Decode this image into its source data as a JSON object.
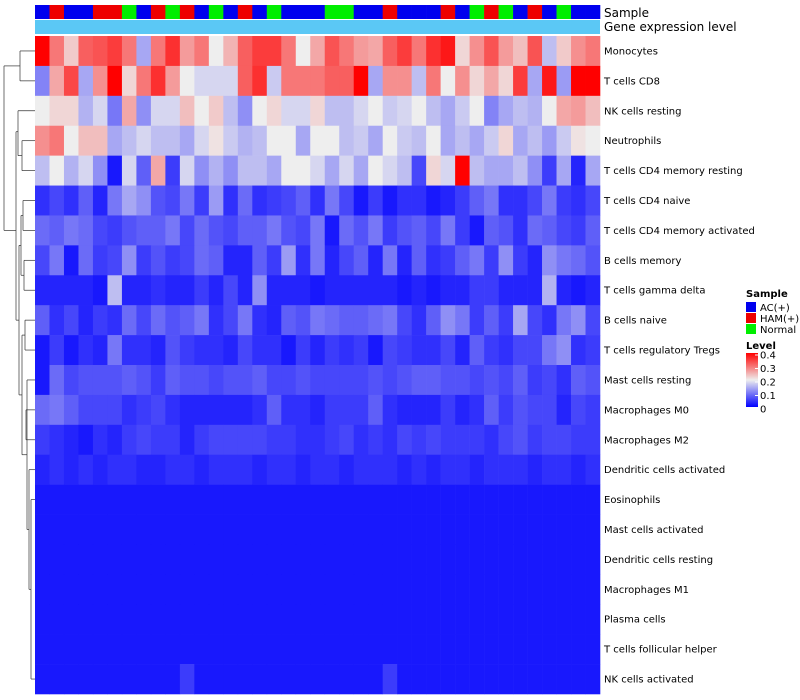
{
  "chart_data": {
    "type": "heatmap",
    "title": "",
    "annotation_rows": [
      "Sample",
      "Gene expression level"
    ],
    "columns": 39,
    "sample_groups": [
      "AC(+)",
      "HAM(+)",
      "AC(+)",
      "AC(+)",
      "HAM(+)",
      "HAM(+)",
      "Normal",
      "AC(+)",
      "HAM(+)",
      "Normal",
      "HAM(+)",
      "AC(+)",
      "Normal",
      "AC(+)",
      "HAM(+)",
      "AC(+)",
      "Normal",
      "AC(+)",
      "AC(+)",
      "AC(+)",
      "Normal",
      "Normal",
      "AC(+)",
      "AC(+)",
      "HAM(+)",
      "AC(+)",
      "AC(+)",
      "AC(+)",
      "HAM(+)",
      "AC(+)",
      "Normal",
      "HAM(+)",
      "Normal",
      "AC(+)",
      "HAM(+)",
      "AC(+)",
      "Normal",
      "AC(+)",
      "AC(+)"
    ],
    "rows": [
      "Monocytes",
      "T cells CD8",
      "NK cells resting",
      "Neutrophils",
      "T cells CD4 memory resting",
      "T cells CD4 naive",
      "T cells CD4 memory activated",
      "B cells memory",
      "T cells gamma delta",
      "B cells naive",
      "T cells regulatory  Tregs",
      "Mast cells resting",
      "Macrophages M0",
      "Macrophages M2",
      "Dendritic cells activated",
      "Eosinophils",
      "Mast cells activated",
      "Dendritic cells resting",
      "Macrophages M1",
      "Plasma cells",
      "T cells follicular helper",
      "NK cells activated"
    ],
    "values": [
      [
        0.4,
        0.3,
        0.23,
        0.32,
        0.33,
        0.35,
        0.3,
        0.14,
        0.3,
        0.36,
        0.27,
        0.3,
        0.2,
        0.25,
        0.32,
        0.35,
        0.35,
        0.3,
        0.2,
        0.26,
        0.33,
        0.3,
        0.27,
        0.26,
        0.32,
        0.35,
        0.3,
        0.36,
        0.38,
        0.22,
        0.28,
        0.33,
        0.27,
        0.24,
        0.33,
        0.16,
        0.23,
        0.28,
        0.3
      ],
      [
        0.11,
        0.26,
        0.34,
        0.14,
        0.28,
        0.4,
        0.22,
        0.3,
        0.36,
        0.27,
        0.2,
        0.18,
        0.18,
        0.18,
        0.32,
        0.36,
        0.17,
        0.3,
        0.3,
        0.3,
        0.32,
        0.32,
        0.4,
        0.14,
        0.28,
        0.28,
        0.16,
        0.3,
        0.2,
        0.28,
        0.22,
        0.26,
        0.22,
        0.35,
        0.14,
        0.38,
        0.13,
        0.4,
        0.4
      ],
      [
        0.2,
        0.22,
        0.22,
        0.15,
        0.18,
        0.1,
        0.26,
        0.12,
        0.18,
        0.18,
        0.24,
        0.2,
        0.23,
        0.16,
        0.12,
        0.2,
        0.22,
        0.18,
        0.18,
        0.22,
        0.16,
        0.16,
        0.18,
        0.2,
        0.17,
        0.18,
        0.2,
        0.16,
        0.14,
        0.17,
        0.2,
        0.11,
        0.14,
        0.16,
        0.15,
        0.2,
        0.26,
        0.27,
        0.24
      ],
      [
        0.28,
        0.3,
        0.2,
        0.24,
        0.24,
        0.14,
        0.16,
        0.18,
        0.16,
        0.16,
        0.14,
        0.18,
        0.21,
        0.17,
        0.15,
        0.16,
        0.2,
        0.2,
        0.14,
        0.2,
        0.2,
        0.16,
        0.17,
        0.14,
        0.2,
        0.17,
        0.16,
        0.2,
        0.14,
        0.16,
        0.14,
        0.17,
        0.22,
        0.14,
        0.16,
        0.13,
        0.17,
        0.21,
        0.2
      ],
      [
        0.16,
        0.2,
        0.15,
        0.18,
        0.12,
        0.02,
        0.18,
        0.08,
        0.26,
        0.05,
        0.18,
        0.12,
        0.15,
        0.12,
        0.16,
        0.16,
        0.14,
        0.2,
        0.2,
        0.18,
        0.14,
        0.18,
        0.14,
        0.2,
        0.18,
        0.16,
        0.06,
        0.22,
        0.18,
        0.4,
        0.16,
        0.14,
        0.14,
        0.16,
        0.12,
        0.05,
        0.14,
        0.03,
        0.14
      ],
      [
        0.04,
        0.06,
        0.04,
        0.08,
        0.03,
        0.1,
        0.14,
        0.12,
        0.07,
        0.06,
        0.1,
        0.05,
        0.13,
        0.04,
        0.09,
        0.04,
        0.05,
        0.06,
        0.08,
        0.04,
        0.1,
        0.06,
        0.02,
        0.05,
        0.02,
        0.04,
        0.04,
        0.02,
        0.03,
        0.05,
        0.08,
        0.1,
        0.04,
        0.04,
        0.06,
        0.1,
        0.05,
        0.04,
        0.06
      ],
      [
        0.09,
        0.08,
        0.1,
        0.09,
        0.06,
        0.05,
        0.07,
        0.08,
        0.08,
        0.1,
        0.06,
        0.09,
        0.07,
        0.06,
        0.08,
        0.08,
        0.1,
        0.07,
        0.06,
        0.1,
        0.02,
        0.09,
        0.07,
        0.1,
        0.05,
        0.07,
        0.08,
        0.06,
        0.1,
        0.05,
        0.02,
        0.08,
        0.07,
        0.04,
        0.09,
        0.08,
        0.06,
        0.05,
        0.08
      ],
      [
        0.06,
        0.1,
        0.02,
        0.09,
        0.05,
        0.06,
        0.12,
        0.05,
        0.07,
        0.05,
        0.06,
        0.09,
        0.08,
        0.03,
        0.03,
        0.08,
        0.05,
        0.13,
        0.04,
        0.1,
        0.03,
        0.06,
        0.08,
        0.03,
        0.1,
        0.03,
        0.08,
        0.04,
        0.05,
        0.08,
        0.1,
        0.05,
        0.12,
        0.05,
        0.03,
        0.12,
        0.1,
        0.09,
        0.07
      ],
      [
        0.03,
        0.03,
        0.03,
        0.03,
        0.02,
        0.16,
        0.03,
        0.03,
        0.04,
        0.03,
        0.03,
        0.05,
        0.03,
        0.06,
        0.03,
        0.12,
        0.03,
        0.03,
        0.03,
        0.02,
        0.03,
        0.03,
        0.03,
        0.03,
        0.03,
        0.02,
        0.03,
        0.02,
        0.03,
        0.03,
        0.05,
        0.05,
        0.03,
        0.03,
        0.03,
        0.15,
        0.03,
        0.02,
        0.03
      ],
      [
        0.08,
        0.04,
        0.06,
        0.03,
        0.05,
        0.04,
        0.09,
        0.06,
        0.09,
        0.07,
        0.08,
        0.1,
        0.04,
        0.06,
        0.1,
        0.04,
        0.03,
        0.08,
        0.07,
        0.1,
        0.09,
        0.08,
        0.08,
        0.09,
        0.1,
        0.06,
        0.04,
        0.08,
        0.12,
        0.1,
        0.05,
        0.08,
        0.05,
        0.14,
        0.06,
        0.04,
        0.1,
        0.12,
        0.06
      ],
      [
        0.02,
        0.05,
        0.02,
        0.04,
        0.03,
        0.1,
        0.04,
        0.04,
        0.03,
        0.07,
        0.05,
        0.04,
        0.04,
        0.03,
        0.06,
        0.04,
        0.04,
        0.02,
        0.05,
        0.03,
        0.05,
        0.04,
        0.05,
        0.02,
        0.06,
        0.05,
        0.04,
        0.04,
        0.06,
        0.03,
        0.08,
        0.05,
        0.04,
        0.06,
        0.06,
        0.1,
        0.12,
        0.04,
        0.05
      ],
      [
        0.02,
        0.09,
        0.06,
        0.07,
        0.07,
        0.07,
        0.08,
        0.07,
        0.05,
        0.08,
        0.07,
        0.07,
        0.06,
        0.07,
        0.07,
        0.08,
        0.06,
        0.06,
        0.07,
        0.06,
        0.06,
        0.06,
        0.06,
        0.07,
        0.06,
        0.07,
        0.08,
        0.08,
        0.07,
        0.07,
        0.06,
        0.07,
        0.06,
        0.08,
        0.05,
        0.06,
        0.04,
        0.08,
        0.07
      ],
      [
        0.09,
        0.1,
        0.08,
        0.06,
        0.06,
        0.06,
        0.04,
        0.05,
        0.06,
        0.04,
        0.03,
        0.03,
        0.03,
        0.03,
        0.03,
        0.04,
        0.08,
        0.04,
        0.04,
        0.03,
        0.05,
        0.05,
        0.05,
        0.08,
        0.04,
        0.03,
        0.03,
        0.03,
        0.05,
        0.03,
        0.04,
        0.08,
        0.05,
        0.07,
        0.06,
        0.06,
        0.03,
        0.06,
        0.05
      ],
      [
        0.05,
        0.04,
        0.03,
        0.02,
        0.04,
        0.03,
        0.05,
        0.06,
        0.05,
        0.05,
        0.03,
        0.05,
        0.06,
        0.06,
        0.06,
        0.06,
        0.05,
        0.05,
        0.04,
        0.04,
        0.05,
        0.06,
        0.04,
        0.05,
        0.04,
        0.06,
        0.05,
        0.06,
        0.05,
        0.05,
        0.05,
        0.04,
        0.06,
        0.07,
        0.05,
        0.06,
        0.06,
        0.05,
        0.05
      ],
      [
        0.03,
        0.04,
        0.03,
        0.04,
        0.03,
        0.04,
        0.04,
        0.03,
        0.03,
        0.04,
        0.04,
        0.03,
        0.04,
        0.04,
        0.04,
        0.03,
        0.04,
        0.04,
        0.03,
        0.04,
        0.04,
        0.03,
        0.04,
        0.04,
        0.04,
        0.03,
        0.04,
        0.03,
        0.04,
        0.04,
        0.03,
        0.04,
        0.04,
        0.04,
        0.03,
        0.04,
        0.04,
        0.03,
        0.04
      ],
      [
        0.02,
        0.02,
        0.02,
        0.02,
        0.02,
        0.02,
        0.02,
        0.02,
        0.02,
        0.02,
        0.02,
        0.02,
        0.02,
        0.02,
        0.02,
        0.02,
        0.02,
        0.02,
        0.02,
        0.02,
        0.02,
        0.02,
        0.02,
        0.02,
        0.02,
        0.02,
        0.02,
        0.02,
        0.02,
        0.02,
        0.02,
        0.02,
        0.02,
        0.02,
        0.02,
        0.02,
        0.02,
        0.02,
        0.02
      ],
      [
        0.02,
        0.02,
        0.02,
        0.02,
        0.02,
        0.02,
        0.02,
        0.02,
        0.02,
        0.02,
        0.02,
        0.02,
        0.02,
        0.02,
        0.02,
        0.02,
        0.02,
        0.02,
        0.02,
        0.02,
        0.02,
        0.02,
        0.02,
        0.02,
        0.02,
        0.02,
        0.02,
        0.02,
        0.02,
        0.02,
        0.02,
        0.02,
        0.02,
        0.02,
        0.02,
        0.02,
        0.02,
        0.02,
        0.02
      ],
      [
        0.02,
        0.02,
        0.02,
        0.02,
        0.02,
        0.02,
        0.02,
        0.02,
        0.02,
        0.02,
        0.02,
        0.02,
        0.02,
        0.02,
        0.02,
        0.02,
        0.02,
        0.02,
        0.02,
        0.02,
        0.02,
        0.02,
        0.02,
        0.02,
        0.02,
        0.02,
        0.02,
        0.02,
        0.02,
        0.02,
        0.02,
        0.02,
        0.02,
        0.02,
        0.02,
        0.02,
        0.02,
        0.02,
        0.02
      ],
      [
        0.02,
        0.02,
        0.02,
        0.02,
        0.02,
        0.02,
        0.02,
        0.02,
        0.02,
        0.02,
        0.02,
        0.02,
        0.02,
        0.02,
        0.02,
        0.02,
        0.02,
        0.02,
        0.02,
        0.02,
        0.02,
        0.02,
        0.02,
        0.02,
        0.02,
        0.02,
        0.02,
        0.02,
        0.02,
        0.02,
        0.02,
        0.02,
        0.02,
        0.02,
        0.02,
        0.02,
        0.02,
        0.02,
        0.02
      ],
      [
        0.02,
        0.02,
        0.02,
        0.02,
        0.02,
        0.02,
        0.02,
        0.02,
        0.02,
        0.02,
        0.02,
        0.02,
        0.02,
        0.02,
        0.02,
        0.02,
        0.02,
        0.02,
        0.02,
        0.02,
        0.02,
        0.02,
        0.02,
        0.02,
        0.02,
        0.02,
        0.02,
        0.02,
        0.02,
        0.02,
        0.02,
        0.02,
        0.02,
        0.02,
        0.02,
        0.02,
        0.02,
        0.02,
        0.02
      ],
      [
        0.02,
        0.02,
        0.02,
        0.02,
        0.02,
        0.02,
        0.02,
        0.02,
        0.02,
        0.02,
        0.02,
        0.02,
        0.02,
        0.02,
        0.02,
        0.02,
        0.02,
        0.02,
        0.02,
        0.02,
        0.02,
        0.02,
        0.02,
        0.02,
        0.02,
        0.02,
        0.02,
        0.02,
        0.02,
        0.02,
        0.02,
        0.02,
        0.02,
        0.02,
        0.02,
        0.02,
        0.02,
        0.02,
        0.02
      ],
      [
        0.02,
        0.02,
        0.02,
        0.02,
        0.02,
        0.02,
        0.02,
        0.02,
        0.02,
        0.02,
        0.05,
        0.02,
        0.02,
        0.02,
        0.02,
        0.02,
        0.02,
        0.02,
        0.02,
        0.02,
        0.02,
        0.02,
        0.02,
        0.02,
        0.05,
        0.02,
        0.02,
        0.02,
        0.02,
        0.02,
        0.02,
        0.02,
        0.02,
        0.02,
        0.02,
        0.02,
        0.02,
        0.02,
        0.02
      ]
    ],
    "color_scale": {
      "min": 0,
      "max": 0.4,
      "low": "#0000ff",
      "mid": "#eeeeee",
      "high": "#ff0000"
    },
    "legend": {
      "sample_title": "Sample",
      "sample_entries": [
        {
          "label": "AC(+)",
          "color": "#0000ee"
        },
        {
          "label": "HAM(+)",
          "color": "#ee0000"
        },
        {
          "label": "Normal",
          "color": "#00ee00"
        }
      ],
      "level_title": "Level",
      "level_ticks": [
        "0.4",
        "0.3",
        "0.2",
        "0.1",
        "0"
      ],
      "placement": "right"
    },
    "annotation_colors": {
      "gene_expression_level": "#5bc8f5"
    }
  }
}
